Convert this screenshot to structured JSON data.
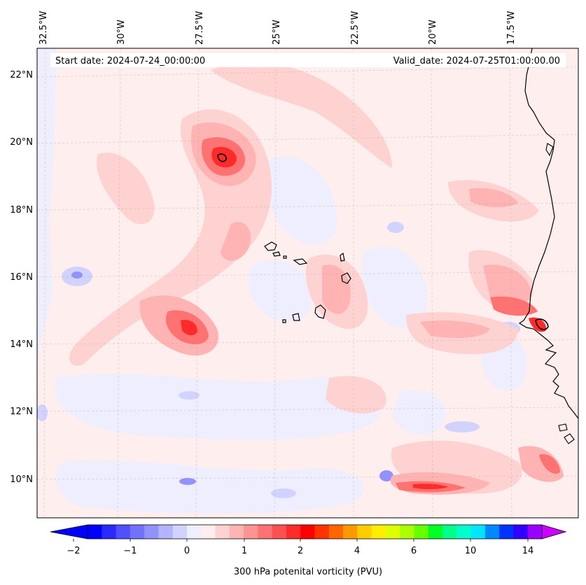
{
  "header": {
    "start_date": "Start date: 2024-07-24_00:00:00",
    "valid_date": "Valid_date: 2024-07-25T01:00:00.00"
  },
  "lon_ticks": [
    "32.5°W",
    "30°W",
    "27.5°W",
    "25°W",
    "22.5°W",
    "20°W",
    "17.5°W"
  ],
  "lat_ticks": [
    "22°N",
    "20°N",
    "18°N",
    "16°N",
    "14°N",
    "12°N",
    "10°N"
  ],
  "colorbar": {
    "label": "300 hPa potenital vorticity (PVU)",
    "tick_labels": [
      "−2",
      "−1",
      "0",
      "1",
      "2",
      "4",
      "6",
      "10",
      "14"
    ],
    "colors": [
      "#0000ff",
      "#2a2aff",
      "#5050ff",
      "#7272ff",
      "#9292ff",
      "#b3b3ff",
      "#d2d2ff",
      "#eeeeff",
      "#ffeeee",
      "#ffd2d2",
      "#ffb3b3",
      "#ff9292",
      "#ff7272",
      "#ff5050",
      "#ff2a2a",
      "#ff0000",
      "#ff3300",
      "#ff6600",
      "#ff9900",
      "#ffcc00",
      "#ffee00",
      "#ddff00",
      "#aaff00",
      "#66ff00",
      "#00ff22",
      "#00ff88",
      "#00ffcc",
      "#00e5ff",
      "#0088ff",
      "#0033ff",
      "#3300ff",
      "#9900ff"
    ],
    "extend_left_color": "#0000ff",
    "extend_right_color": "#cc00ff"
  },
  "map": {
    "background_color": "#ffeeee",
    "coastline_color": "#000000"
  }
}
